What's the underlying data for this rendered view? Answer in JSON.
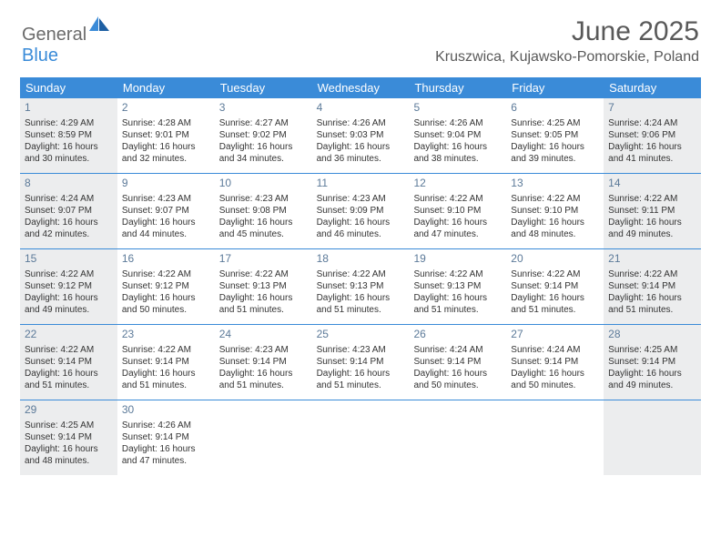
{
  "logo": {
    "part1": "General",
    "part2": "Blue"
  },
  "title": "June 2025",
  "location": "Kruszwica, Kujawsko-Pomorskie, Poland",
  "header_bg": "#3a8bd8",
  "shade_bg": "#ecedee",
  "rule_color": "#3a8bd8",
  "daynum_color": "#5c7a99",
  "text_color": "#333333",
  "title_color": "#595959",
  "fontsize_title": 30,
  "fontsize_location": 16,
  "fontsize_dayhead": 13,
  "fontsize_daynum": 12,
  "fontsize_info": 10,
  "days_of_week": [
    "Sunday",
    "Monday",
    "Tuesday",
    "Wednesday",
    "Thursday",
    "Friday",
    "Saturday"
  ],
  "weeks": [
    [
      {
        "n": "1",
        "shaded": true,
        "sunrise": "Sunrise: 4:29 AM",
        "sunset": "Sunset: 8:59 PM",
        "day1": "Daylight: 16 hours",
        "day2": "and 30 minutes."
      },
      {
        "n": "2",
        "shaded": false,
        "sunrise": "Sunrise: 4:28 AM",
        "sunset": "Sunset: 9:01 PM",
        "day1": "Daylight: 16 hours",
        "day2": "and 32 minutes."
      },
      {
        "n": "3",
        "shaded": false,
        "sunrise": "Sunrise: 4:27 AM",
        "sunset": "Sunset: 9:02 PM",
        "day1": "Daylight: 16 hours",
        "day2": "and 34 minutes."
      },
      {
        "n": "4",
        "shaded": false,
        "sunrise": "Sunrise: 4:26 AM",
        "sunset": "Sunset: 9:03 PM",
        "day1": "Daylight: 16 hours",
        "day2": "and 36 minutes."
      },
      {
        "n": "5",
        "shaded": false,
        "sunrise": "Sunrise: 4:26 AM",
        "sunset": "Sunset: 9:04 PM",
        "day1": "Daylight: 16 hours",
        "day2": "and 38 minutes."
      },
      {
        "n": "6",
        "shaded": false,
        "sunrise": "Sunrise: 4:25 AM",
        "sunset": "Sunset: 9:05 PM",
        "day1": "Daylight: 16 hours",
        "day2": "and 39 minutes."
      },
      {
        "n": "7",
        "shaded": true,
        "sunrise": "Sunrise: 4:24 AM",
        "sunset": "Sunset: 9:06 PM",
        "day1": "Daylight: 16 hours",
        "day2": "and 41 minutes."
      }
    ],
    [
      {
        "n": "8",
        "shaded": true,
        "sunrise": "Sunrise: 4:24 AM",
        "sunset": "Sunset: 9:07 PM",
        "day1": "Daylight: 16 hours",
        "day2": "and 42 minutes."
      },
      {
        "n": "9",
        "shaded": false,
        "sunrise": "Sunrise: 4:23 AM",
        "sunset": "Sunset: 9:07 PM",
        "day1": "Daylight: 16 hours",
        "day2": "and 44 minutes."
      },
      {
        "n": "10",
        "shaded": false,
        "sunrise": "Sunrise: 4:23 AM",
        "sunset": "Sunset: 9:08 PM",
        "day1": "Daylight: 16 hours",
        "day2": "and 45 minutes."
      },
      {
        "n": "11",
        "shaded": false,
        "sunrise": "Sunrise: 4:23 AM",
        "sunset": "Sunset: 9:09 PM",
        "day1": "Daylight: 16 hours",
        "day2": "and 46 minutes."
      },
      {
        "n": "12",
        "shaded": false,
        "sunrise": "Sunrise: 4:22 AM",
        "sunset": "Sunset: 9:10 PM",
        "day1": "Daylight: 16 hours",
        "day2": "and 47 minutes."
      },
      {
        "n": "13",
        "shaded": false,
        "sunrise": "Sunrise: 4:22 AM",
        "sunset": "Sunset: 9:10 PM",
        "day1": "Daylight: 16 hours",
        "day2": "and 48 minutes."
      },
      {
        "n": "14",
        "shaded": true,
        "sunrise": "Sunrise: 4:22 AM",
        "sunset": "Sunset: 9:11 PM",
        "day1": "Daylight: 16 hours",
        "day2": "and 49 minutes."
      }
    ],
    [
      {
        "n": "15",
        "shaded": true,
        "sunrise": "Sunrise: 4:22 AM",
        "sunset": "Sunset: 9:12 PM",
        "day1": "Daylight: 16 hours",
        "day2": "and 49 minutes."
      },
      {
        "n": "16",
        "shaded": false,
        "sunrise": "Sunrise: 4:22 AM",
        "sunset": "Sunset: 9:12 PM",
        "day1": "Daylight: 16 hours",
        "day2": "and 50 minutes."
      },
      {
        "n": "17",
        "shaded": false,
        "sunrise": "Sunrise: 4:22 AM",
        "sunset": "Sunset: 9:13 PM",
        "day1": "Daylight: 16 hours",
        "day2": "and 51 minutes."
      },
      {
        "n": "18",
        "shaded": false,
        "sunrise": "Sunrise: 4:22 AM",
        "sunset": "Sunset: 9:13 PM",
        "day1": "Daylight: 16 hours",
        "day2": "and 51 minutes."
      },
      {
        "n": "19",
        "shaded": false,
        "sunrise": "Sunrise: 4:22 AM",
        "sunset": "Sunset: 9:13 PM",
        "day1": "Daylight: 16 hours",
        "day2": "and 51 minutes."
      },
      {
        "n": "20",
        "shaded": false,
        "sunrise": "Sunrise: 4:22 AM",
        "sunset": "Sunset: 9:14 PM",
        "day1": "Daylight: 16 hours",
        "day2": "and 51 minutes."
      },
      {
        "n": "21",
        "shaded": true,
        "sunrise": "Sunrise: 4:22 AM",
        "sunset": "Sunset: 9:14 PM",
        "day1": "Daylight: 16 hours",
        "day2": "and 51 minutes."
      }
    ],
    [
      {
        "n": "22",
        "shaded": true,
        "sunrise": "Sunrise: 4:22 AM",
        "sunset": "Sunset: 9:14 PM",
        "day1": "Daylight: 16 hours",
        "day2": "and 51 minutes."
      },
      {
        "n": "23",
        "shaded": false,
        "sunrise": "Sunrise: 4:22 AM",
        "sunset": "Sunset: 9:14 PM",
        "day1": "Daylight: 16 hours",
        "day2": "and 51 minutes."
      },
      {
        "n": "24",
        "shaded": false,
        "sunrise": "Sunrise: 4:23 AM",
        "sunset": "Sunset: 9:14 PM",
        "day1": "Daylight: 16 hours",
        "day2": "and 51 minutes."
      },
      {
        "n": "25",
        "shaded": false,
        "sunrise": "Sunrise: 4:23 AM",
        "sunset": "Sunset: 9:14 PM",
        "day1": "Daylight: 16 hours",
        "day2": "and 51 minutes."
      },
      {
        "n": "26",
        "shaded": false,
        "sunrise": "Sunrise: 4:24 AM",
        "sunset": "Sunset: 9:14 PM",
        "day1": "Daylight: 16 hours",
        "day2": "and 50 minutes."
      },
      {
        "n": "27",
        "shaded": false,
        "sunrise": "Sunrise: 4:24 AM",
        "sunset": "Sunset: 9:14 PM",
        "day1": "Daylight: 16 hours",
        "day2": "and 50 minutes."
      },
      {
        "n": "28",
        "shaded": true,
        "sunrise": "Sunrise: 4:25 AM",
        "sunset": "Sunset: 9:14 PM",
        "day1": "Daylight: 16 hours",
        "day2": "and 49 minutes."
      }
    ],
    [
      {
        "n": "29",
        "shaded": true,
        "sunrise": "Sunrise: 4:25 AM",
        "sunset": "Sunset: 9:14 PM",
        "day1": "Daylight: 16 hours",
        "day2": "and 48 minutes."
      },
      {
        "n": "30",
        "shaded": false,
        "sunrise": "Sunrise: 4:26 AM",
        "sunset": "Sunset: 9:14 PM",
        "day1": "Daylight: 16 hours",
        "day2": "and 47 minutes."
      },
      {
        "n": "",
        "shaded": false
      },
      {
        "n": "",
        "shaded": false
      },
      {
        "n": "",
        "shaded": false
      },
      {
        "n": "",
        "shaded": false
      },
      {
        "n": "",
        "shaded": true
      }
    ]
  ]
}
